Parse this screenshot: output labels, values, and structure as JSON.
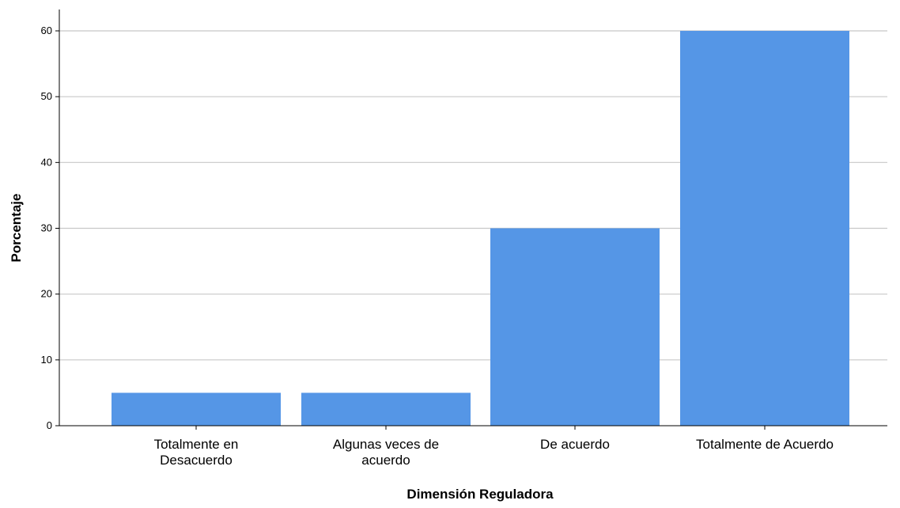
{
  "chart_data": {
    "type": "bar",
    "title": "",
    "xlabel": "Dimensión Reguladora",
    "ylabel": "Porcentaje",
    "categories": [
      [
        "Totalmente en",
        "Desacuerdo"
      ],
      [
        "Algunas veces de",
        "acuerdo"
      ],
      [
        "De acuerdo"
      ],
      [
        "Totalmente de Acuerdo"
      ]
    ],
    "values": [
      5,
      5,
      30,
      60
    ],
    "ylim": [
      0,
      63
    ],
    "yticks": [
      0,
      10,
      20,
      30,
      40,
      50,
      60
    ],
    "grid": true,
    "legend": "none",
    "colors": {
      "bar": "#5596e6",
      "grid": "#c8c8c8",
      "axis": "#000000"
    }
  }
}
